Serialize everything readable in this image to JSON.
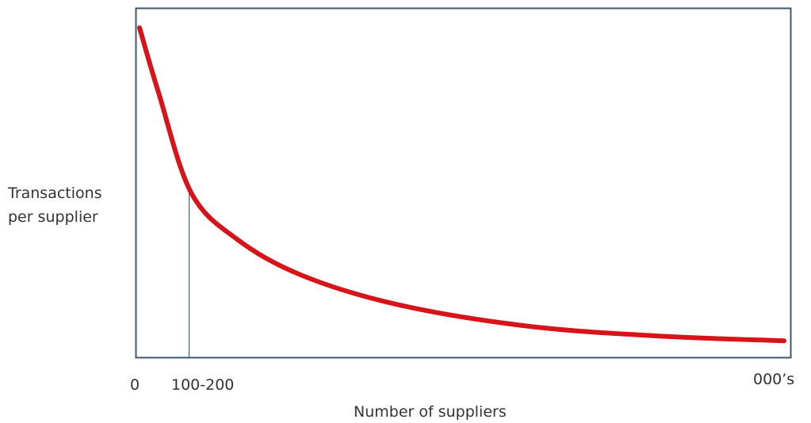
{
  "chart_data": {
    "type": "line",
    "title": "",
    "xlabel": "Number of suppliers",
    "ylabel_lines": [
      "Transactions",
      "per supplier"
    ],
    "x_tick_labels": [
      "0",
      "100-200",
      "000’s"
    ],
    "marker_label": "100-200",
    "grid": false,
    "legend": "none",
    "series": [
      {
        "color": "#d7141a",
        "points": [
          [
            0,
            1.0
          ],
          [
            0.03,
            0.8
          ],
          [
            0.08,
            0.5
          ],
          [
            0.15,
            0.36
          ],
          [
            0.25,
            0.25
          ],
          [
            0.4,
            0.16
          ],
          [
            0.6,
            0.095
          ],
          [
            0.8,
            0.065
          ],
          [
            1.0,
            0.05
          ]
        ]
      }
    ],
    "marker_x": 0.077,
    "colors": {
      "curve": "#d7141a",
      "frame": "#3e5670",
      "marker_line": "#4a6a85",
      "text": "#333333"
    }
  }
}
